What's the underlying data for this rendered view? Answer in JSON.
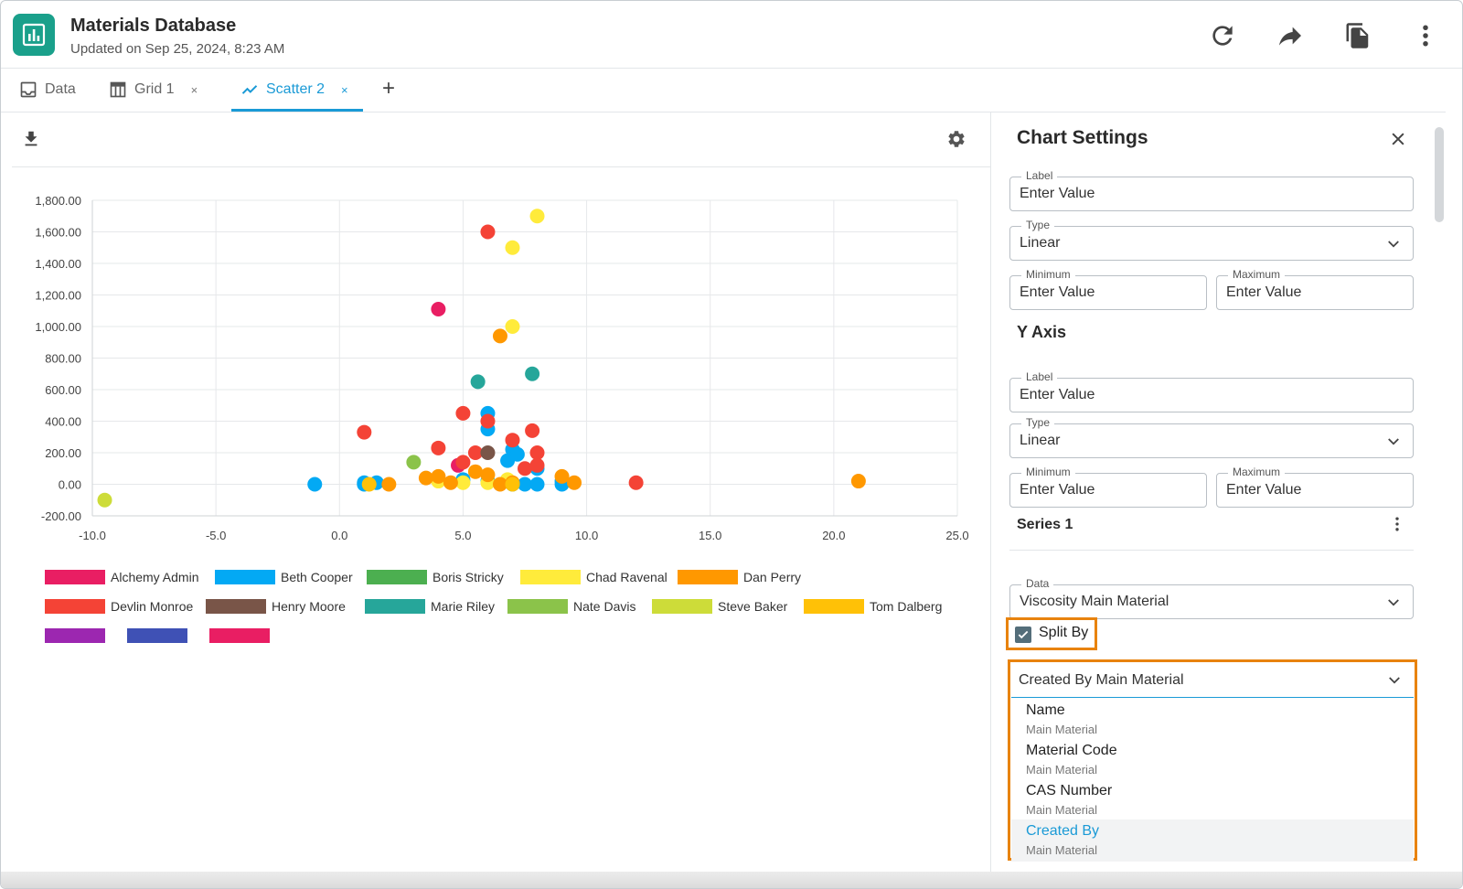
{
  "header": {
    "title": "Materials Database",
    "updated": "Updated on Sep 25, 2024, 8:23 AM",
    "logo_icon": "bar-chart-icon",
    "actions": [
      "refresh-icon",
      "share-icon",
      "copy-icon",
      "more-vertical-icon"
    ]
  },
  "tabs": [
    {
      "label": "Data",
      "icon": "data-icon",
      "closable": false,
      "active": false
    },
    {
      "label": "Grid 1",
      "icon": "grid-icon",
      "closable": true,
      "active": false
    },
    {
      "label": "Scatter 2",
      "icon": "scatter-icon",
      "closable": true,
      "active": true
    }
  ],
  "tab_close_glyph": "×",
  "tab_add_glyph": "+",
  "colors": {
    "accent": "#1a9ad6",
    "highlight": "#e8830e",
    "logo": "#1aa08b"
  },
  "chart_data": {
    "type": "scatter",
    "xlim": [
      -10.0,
      25.0
    ],
    "ylim": [
      -200,
      1800
    ],
    "x_ticks": [
      "-10.0",
      "-5.0",
      "0.0",
      "5.0",
      "10.0",
      "15.0",
      "20.0",
      "25.0"
    ],
    "y_ticks": [
      "1,800.00",
      "1,600.00",
      "1,400.00",
      "1,200.00",
      "1,000.00",
      "800.00",
      "600.00",
      "400.00",
      "200.00",
      "0.00",
      "-200.00"
    ],
    "y_tick_values": [
      1800,
      1600,
      1400,
      1200,
      1000,
      800,
      600,
      400,
      200,
      0,
      -200
    ],
    "x_tick_values": [
      -10,
      -5,
      0,
      5,
      10,
      15,
      20,
      25
    ],
    "grid": true,
    "legend_position": "bottom",
    "series": [
      {
        "name": "Alchemy Admin",
        "color": "#e91e63",
        "points": [
          [
            4.0,
            1110
          ],
          [
            4.8,
            120
          ]
        ]
      },
      {
        "name": "Beth Cooper",
        "color": "#03a9f4",
        "points": [
          [
            -1.0,
            0
          ],
          [
            1.0,
            10
          ],
          [
            1.0,
            0
          ],
          [
            1.5,
            10
          ],
          [
            5.0,
            30
          ],
          [
            6.0,
            450
          ],
          [
            6.0,
            350
          ],
          [
            6.0,
            20
          ],
          [
            6.8,
            150
          ],
          [
            7.0,
            220
          ],
          [
            7.0,
            0
          ],
          [
            7.2,
            190
          ],
          [
            7.5,
            0
          ],
          [
            8.0,
            100
          ],
          [
            8.0,
            0
          ],
          [
            9.0,
            20
          ],
          [
            9.0,
            0
          ]
        ]
      },
      {
        "name": "Boris Stricky",
        "color": "#4caf50",
        "points": []
      },
      {
        "name": "Chad Ravenal",
        "color": "#ffeb3b",
        "points": [
          [
            8.0,
            1700
          ],
          [
            7.0,
            1500
          ],
          [
            7.0,
            1000
          ],
          [
            4.0,
            20
          ],
          [
            5.0,
            10
          ],
          [
            6.0,
            10
          ],
          [
            6.8,
            30
          ]
        ]
      },
      {
        "name": "Dan Perry",
        "color": "#ff9800",
        "points": [
          [
            6.5,
            940
          ],
          [
            21.0,
            20
          ],
          [
            2.0,
            0
          ],
          [
            3.5,
            40
          ],
          [
            4.0,
            50
          ],
          [
            4.5,
            10
          ],
          [
            5.5,
            80
          ],
          [
            6.0,
            60
          ],
          [
            6.5,
            0
          ],
          [
            7.0,
            10
          ],
          [
            9.0,
            50
          ],
          [
            9.5,
            10
          ]
        ]
      },
      {
        "name": "Devlin Monroe",
        "color": "#f44336",
        "points": [
          [
            6.0,
            1600
          ],
          [
            1.0,
            330
          ],
          [
            4.0,
            230
          ],
          [
            5.0,
            450
          ],
          [
            5.0,
            140
          ],
          [
            5.5,
            200
          ],
          [
            6.0,
            400
          ],
          [
            7.0,
            280
          ],
          [
            7.8,
            340
          ],
          [
            8.0,
            200
          ],
          [
            7.5,
            100
          ],
          [
            8.0,
            120
          ],
          [
            12.0,
            10
          ]
        ]
      },
      {
        "name": "Henry Moore",
        "color": "#795548",
        "points": [
          [
            6.0,
            200
          ]
        ]
      },
      {
        "name": "Marie Riley",
        "color": "#26a69a",
        "points": [
          [
            5.6,
            650
          ],
          [
            7.8,
            700
          ]
        ]
      },
      {
        "name": "Nate Davis",
        "color": "#8bc34a",
        "points": [
          [
            3.0,
            140
          ]
        ]
      },
      {
        "name": "Steve Baker",
        "color": "#cddc39",
        "points": [
          [
            -9.5,
            -100
          ]
        ]
      },
      {
        "name": "Tom Dalberg",
        "color": "#ffc107",
        "points": [
          [
            1.2,
            0
          ],
          [
            7.0,
            0
          ]
        ]
      },
      {
        "name": "",
        "color": "#9c27b0",
        "points": []
      },
      {
        "name": "",
        "color": "#3f51b5",
        "points": []
      },
      {
        "name": "",
        "color": "#e91e63",
        "points": []
      }
    ]
  },
  "chart_toolbar": {
    "download_icon": "download-icon",
    "settings_icon": "gear-icon"
  },
  "settings": {
    "title": "Chart Settings",
    "x_axis": {
      "label_field": {
        "label": "Label",
        "value": "Enter Value"
      },
      "type_field": {
        "label": "Type",
        "value": "Linear"
      },
      "min_field": {
        "label": "Minimum",
        "value": "Enter Value"
      },
      "max_field": {
        "label": "Maximum",
        "value": "Enter Value"
      }
    },
    "y_axis_title": "Y Axis",
    "y_axis": {
      "label_field": {
        "label": "Label",
        "value": "Enter Value"
      },
      "type_field": {
        "label": "Type",
        "value": "Linear"
      },
      "min_field": {
        "label": "Minimum",
        "value": "Enter Value"
      },
      "max_field": {
        "label": "Maximum",
        "value": "Enter Value"
      }
    },
    "series_title": "Series 1",
    "data_field": {
      "label": "Data",
      "value": "Viscosity Main Material"
    },
    "split_by": {
      "label": "Split By",
      "checked": true
    },
    "split_select": {
      "value": "Created By Main Material",
      "options": [
        {
          "main": "Name",
          "sub": "Main Material",
          "selected": false
        },
        {
          "main": "Material Code",
          "sub": "Main Material",
          "selected": false
        },
        {
          "main": "CAS Number",
          "sub": "Main Material",
          "selected": false
        },
        {
          "main": "Created By",
          "sub": "Main Material",
          "selected": true
        }
      ]
    }
  }
}
